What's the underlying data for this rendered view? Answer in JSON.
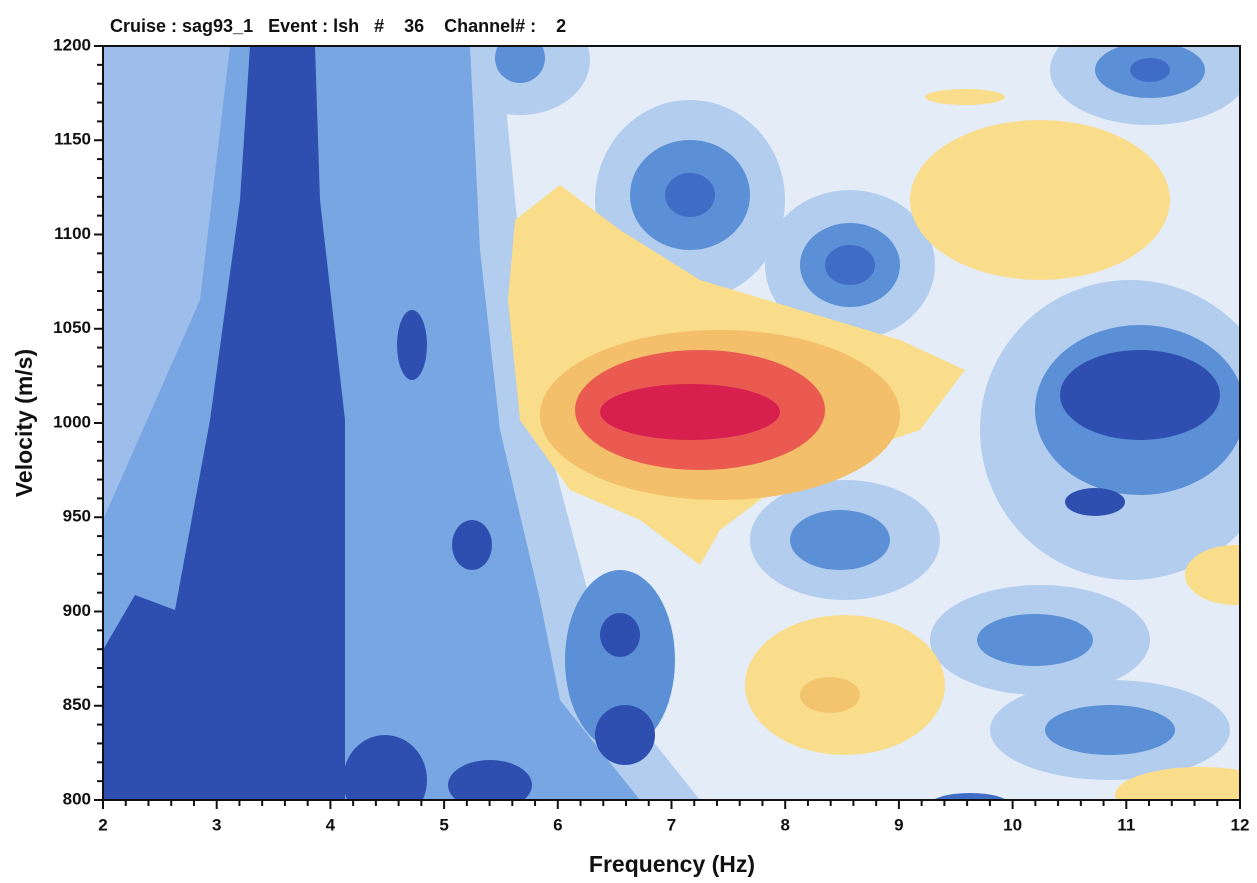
{
  "chart_data": {
    "type": "contour",
    "title": "Cruise : sag93_1   Event : lsh   #    36    Channel# :    2",
    "x_label": "Frequency (Hz)",
    "y_label": "Velocity (m/s)",
    "xlim": [
      2,
      12
    ],
    "xticks": [
      2,
      3,
      4,
      5,
      6,
      7,
      8,
      9,
      10,
      11,
      12
    ],
    "ylim": [
      800,
      1200
    ],
    "yticks": [
      800,
      850,
      900,
      950,
      1000,
      1050,
      1100,
      1150,
      1200
    ]
  }
}
